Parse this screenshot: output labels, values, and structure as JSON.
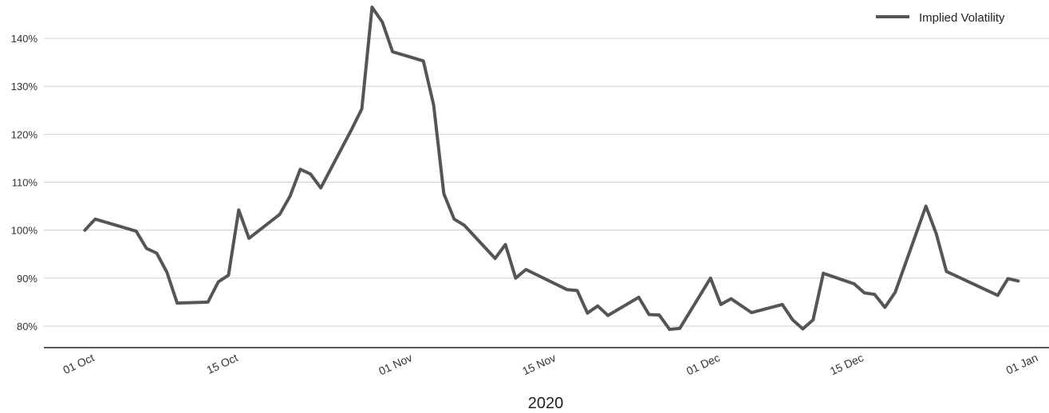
{
  "chart_data": {
    "type": "line",
    "title": "",
    "xlabel": "2020",
    "ylabel": "",
    "x_tick_labels": [
      "01 Oct",
      "15 Oct",
      "01 Nov",
      "15 Nov",
      "01 Dec",
      "15 Dec",
      "01 Jan"
    ],
    "x_ticks": [
      "2020-10-01",
      "2020-10-15",
      "2020-11-01",
      "2020-11-15",
      "2020-12-01",
      "2020-12-15",
      "2021-01-01"
    ],
    "y_tick_labels": [
      "80%",
      "90%",
      "100%",
      "110%",
      "120%",
      "130%",
      "140%"
    ],
    "y_ticks": [
      80,
      90,
      100,
      110,
      120,
      130,
      140
    ],
    "ylim": [
      75.5,
      148
    ],
    "xlim": [
      "2020-09-26",
      "2021-01-02"
    ],
    "grid": true,
    "legend_position": "top-right",
    "series": [
      {
        "name": "Implied Volatility",
        "color": "#555555",
        "points": [
          [
            "2020-09-30",
            100.0
          ],
          [
            "2020-10-01",
            102.3
          ],
          [
            "2020-10-05",
            99.8
          ],
          [
            "2020-10-06",
            96.2
          ],
          [
            "2020-10-07",
            95.2
          ],
          [
            "2020-10-08",
            91.2
          ],
          [
            "2020-10-09",
            84.8
          ],
          [
            "2020-10-12",
            85.0
          ],
          [
            "2020-10-13",
            89.2
          ],
          [
            "2020-10-14",
            90.6
          ],
          [
            "2020-10-15",
            104.2
          ],
          [
            "2020-10-16",
            98.3
          ],
          [
            "2020-10-19",
            103.3
          ],
          [
            "2020-10-20",
            107.1
          ],
          [
            "2020-10-21",
            112.7
          ],
          [
            "2020-10-22",
            111.7
          ],
          [
            "2020-10-23",
            108.8
          ],
          [
            "2020-10-26",
            121.0
          ],
          [
            "2020-10-27",
            125.3
          ],
          [
            "2020-10-28",
            146.5
          ],
          [
            "2020-10-29",
            143.4
          ],
          [
            "2020-10-30",
            137.2
          ],
          [
            "2020-11-02",
            135.3
          ],
          [
            "2020-11-03",
            126.1
          ],
          [
            "2020-11-04",
            107.6
          ],
          [
            "2020-11-05",
            102.3
          ],
          [
            "2020-11-06",
            101.0
          ],
          [
            "2020-11-09",
            94.1
          ],
          [
            "2020-11-10",
            97.0
          ],
          [
            "2020-11-11",
            90.0
          ],
          [
            "2020-11-12",
            91.8
          ],
          [
            "2020-11-16",
            87.6
          ],
          [
            "2020-11-17",
            87.4
          ],
          [
            "2020-11-18",
            82.7
          ],
          [
            "2020-11-19",
            84.2
          ],
          [
            "2020-11-20",
            82.2
          ],
          [
            "2020-11-23",
            86.0
          ],
          [
            "2020-11-24",
            82.4
          ],
          [
            "2020-11-25",
            82.3
          ],
          [
            "2020-11-26",
            79.3
          ],
          [
            "2020-11-27",
            79.5
          ],
          [
            "2020-11-30",
            90.0
          ],
          [
            "2020-12-01",
            84.5
          ],
          [
            "2020-12-02",
            85.7
          ],
          [
            "2020-12-04",
            82.8
          ],
          [
            "2020-12-07",
            84.5
          ],
          [
            "2020-12-08",
            81.3
          ],
          [
            "2020-12-09",
            79.4
          ],
          [
            "2020-12-10",
            81.3
          ],
          [
            "2020-12-11",
            91.0
          ],
          [
            "2020-12-14",
            88.8
          ],
          [
            "2020-12-15",
            86.9
          ],
          [
            "2020-12-16",
            86.6
          ],
          [
            "2020-12-17",
            83.9
          ],
          [
            "2020-12-18",
            87.0
          ],
          [
            "2020-12-21",
            105.0
          ],
          [
            "2020-12-22",
            99.3
          ],
          [
            "2020-12-23",
            91.4
          ],
          [
            "2020-12-28",
            86.4
          ],
          [
            "2020-12-29",
            89.9
          ],
          [
            "2020-12-30",
            89.4
          ]
        ]
      }
    ]
  }
}
